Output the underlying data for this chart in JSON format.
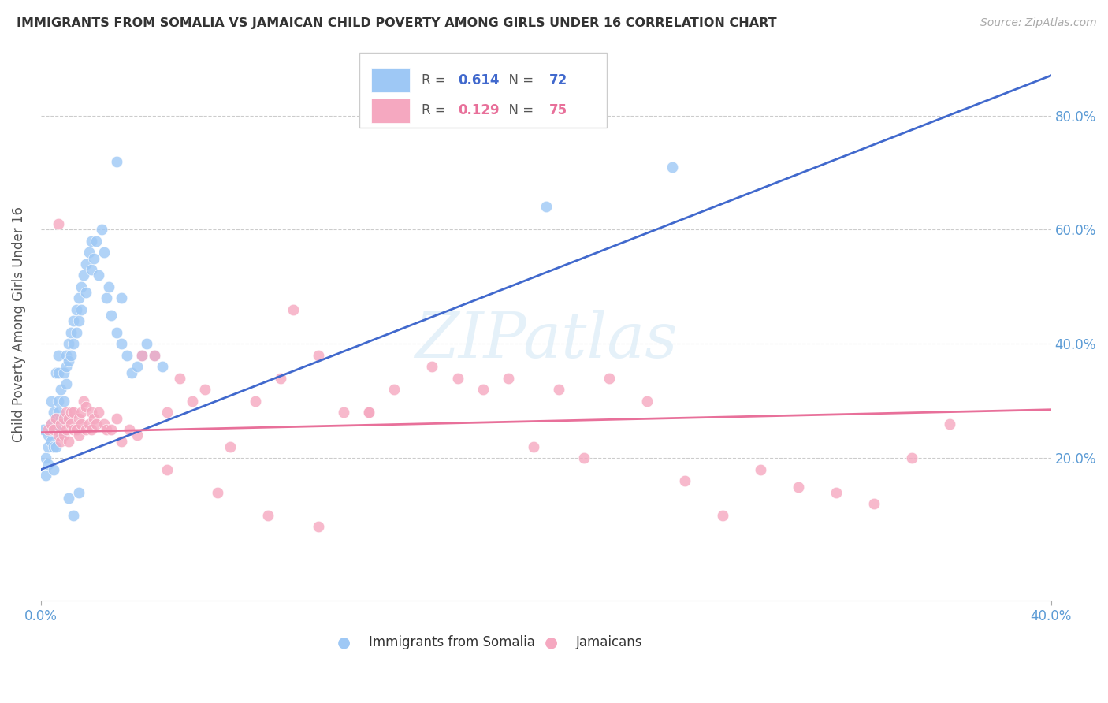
{
  "title": "IMMIGRANTS FROM SOMALIA VS JAMAICAN CHILD POVERTY AMONG GIRLS UNDER 16 CORRELATION CHART",
  "source": "Source: ZipAtlas.com",
  "ylabel": "Child Poverty Among Girls Under 16",
  "ytick_labels": [
    "20.0%",
    "40.0%",
    "60.0%",
    "80.0%"
  ],
  "ytick_values": [
    0.2,
    0.4,
    0.6,
    0.8
  ],
  "xlim": [
    0.0,
    0.4
  ],
  "ylim": [
    -0.05,
    0.92
  ],
  "somalia_R": 0.614,
  "somalia_N": 72,
  "jamaican_R": 0.129,
  "jamaican_N": 75,
  "somalia_color": "#9EC8F5",
  "jamaican_color": "#F5A8C0",
  "somalia_line_color": "#4169CD",
  "jamaican_line_color": "#E8709A",
  "legend_label_somalia": "Immigrants from Somalia",
  "legend_label_jamaican": "Jamaicans",
  "watermark": "ZIPatlas",
  "background_color": "#FFFFFF",
  "grid_color": "#CCCCCC",
  "title_color": "#333333",
  "axis_label_color": "#5B9BD5",
  "somalia_scatter_x": [
    0.001,
    0.002,
    0.002,
    0.003,
    0.003,
    0.003,
    0.004,
    0.004,
    0.004,
    0.005,
    0.005,
    0.005,
    0.005,
    0.006,
    0.006,
    0.006,
    0.006,
    0.007,
    0.007,
    0.007,
    0.007,
    0.008,
    0.008,
    0.008,
    0.009,
    0.009,
    0.009,
    0.01,
    0.01,
    0.01,
    0.011,
    0.011,
    0.012,
    0.012,
    0.013,
    0.013,
    0.014,
    0.014,
    0.015,
    0.015,
    0.016,
    0.016,
    0.017,
    0.018,
    0.018,
    0.019,
    0.02,
    0.02,
    0.021,
    0.022,
    0.023,
    0.024,
    0.025,
    0.026,
    0.027,
    0.028,
    0.03,
    0.032,
    0.034,
    0.036,
    0.038,
    0.04,
    0.042,
    0.045,
    0.048,
    0.03,
    0.032,
    0.015,
    0.013,
    0.011,
    0.2,
    0.25
  ],
  "somalia_scatter_y": [
    0.25,
    0.2,
    0.17,
    0.24,
    0.22,
    0.19,
    0.23,
    0.26,
    0.3,
    0.22,
    0.25,
    0.28,
    0.18,
    0.27,
    0.25,
    0.22,
    0.35,
    0.3,
    0.28,
    0.35,
    0.38,
    0.32,
    0.27,
    0.24,
    0.35,
    0.3,
    0.27,
    0.38,
    0.36,
    0.33,
    0.4,
    0.37,
    0.42,
    0.38,
    0.44,
    0.4,
    0.46,
    0.42,
    0.48,
    0.44,
    0.5,
    0.46,
    0.52,
    0.54,
    0.49,
    0.56,
    0.58,
    0.53,
    0.55,
    0.58,
    0.52,
    0.6,
    0.56,
    0.48,
    0.5,
    0.45,
    0.42,
    0.4,
    0.38,
    0.35,
    0.36,
    0.38,
    0.4,
    0.38,
    0.36,
    0.72,
    0.48,
    0.14,
    0.1,
    0.13,
    0.64,
    0.71
  ],
  "jamaican_scatter_x": [
    0.003,
    0.004,
    0.005,
    0.006,
    0.007,
    0.007,
    0.008,
    0.008,
    0.009,
    0.009,
    0.01,
    0.01,
    0.011,
    0.011,
    0.012,
    0.012,
    0.013,
    0.013,
    0.014,
    0.015,
    0.015,
    0.016,
    0.016,
    0.017,
    0.018,
    0.018,
    0.019,
    0.02,
    0.02,
    0.021,
    0.022,
    0.023,
    0.025,
    0.026,
    0.028,
    0.03,
    0.032,
    0.035,
    0.038,
    0.04,
    0.045,
    0.05,
    0.055,
    0.06,
    0.065,
    0.075,
    0.085,
    0.095,
    0.1,
    0.11,
    0.12,
    0.13,
    0.14,
    0.155,
    0.165,
    0.175,
    0.185,
    0.195,
    0.205,
    0.215,
    0.225,
    0.24,
    0.255,
    0.27,
    0.285,
    0.3,
    0.315,
    0.33,
    0.345,
    0.36,
    0.05,
    0.07,
    0.09,
    0.11,
    0.13
  ],
  "jamaican_scatter_y": [
    0.25,
    0.26,
    0.25,
    0.27,
    0.24,
    0.61,
    0.26,
    0.23,
    0.27,
    0.24,
    0.25,
    0.28,
    0.27,
    0.23,
    0.26,
    0.28,
    0.25,
    0.28,
    0.25,
    0.27,
    0.24,
    0.26,
    0.28,
    0.3,
    0.25,
    0.29,
    0.26,
    0.28,
    0.25,
    0.27,
    0.26,
    0.28,
    0.26,
    0.25,
    0.25,
    0.27,
    0.23,
    0.25,
    0.24,
    0.38,
    0.38,
    0.28,
    0.34,
    0.3,
    0.32,
    0.22,
    0.3,
    0.34,
    0.46,
    0.38,
    0.28,
    0.28,
    0.32,
    0.36,
    0.34,
    0.32,
    0.34,
    0.22,
    0.32,
    0.2,
    0.34,
    0.3,
    0.16,
    0.1,
    0.18,
    0.15,
    0.14,
    0.12,
    0.2,
    0.26,
    0.18,
    0.14,
    0.1,
    0.08,
    0.28
  ],
  "somalia_line_x": [
    0.0,
    0.4
  ],
  "somalia_line_y": [
    0.18,
    0.87
  ],
  "jamaican_line_x": [
    0.0,
    0.4
  ],
  "jamaican_line_y": [
    0.245,
    0.285
  ]
}
